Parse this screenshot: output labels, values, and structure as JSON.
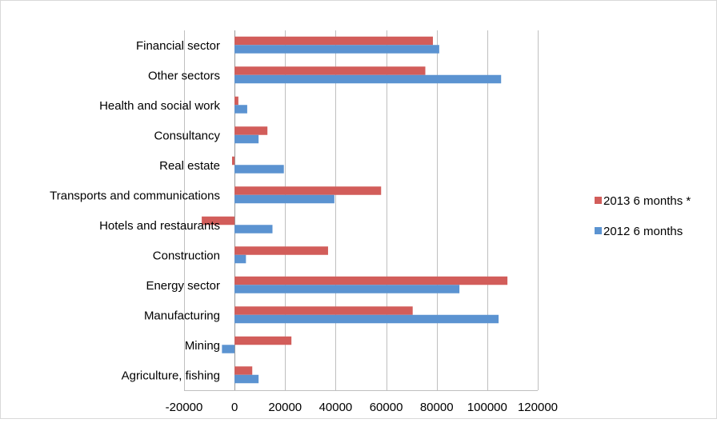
{
  "chart_data": {
    "type": "bar",
    "orientation": "horizontal",
    "categories": [
      "Financial sector",
      "Other sectors",
      "Health and social work",
      "Consultancy",
      "Real estate",
      "Transports and communications",
      "Hotels and restaurants",
      "Construction",
      "Energy sector",
      "Manufacturing",
      "Mining",
      "Agriculture, fishing"
    ],
    "series": [
      {
        "name": "2013 6 months *",
        "color": "#d25d5a",
        "values": [
          78500,
          75500,
          1500,
          13000,
          -1000,
          58000,
          -13000,
          37000,
          108000,
          70500,
          22500,
          7000
        ]
      },
      {
        "name": "2012 6 months",
        "color": "#5b93d1",
        "values": [
          81000,
          105500,
          5000,
          9500,
          19500,
          39500,
          15000,
          4500,
          89000,
          104500,
          -5000,
          9500
        ]
      }
    ],
    "xlim": [
      -20000,
      120000
    ],
    "xticks": [
      -20000,
      0,
      20000,
      40000,
      60000,
      80000,
      100000,
      120000
    ],
    "xtick_labels": [
      "-20000",
      "0",
      "20000",
      "40000",
      "60000",
      "80000",
      "100000",
      "120000"
    ],
    "grid": "vertical",
    "legend_position": "right"
  }
}
